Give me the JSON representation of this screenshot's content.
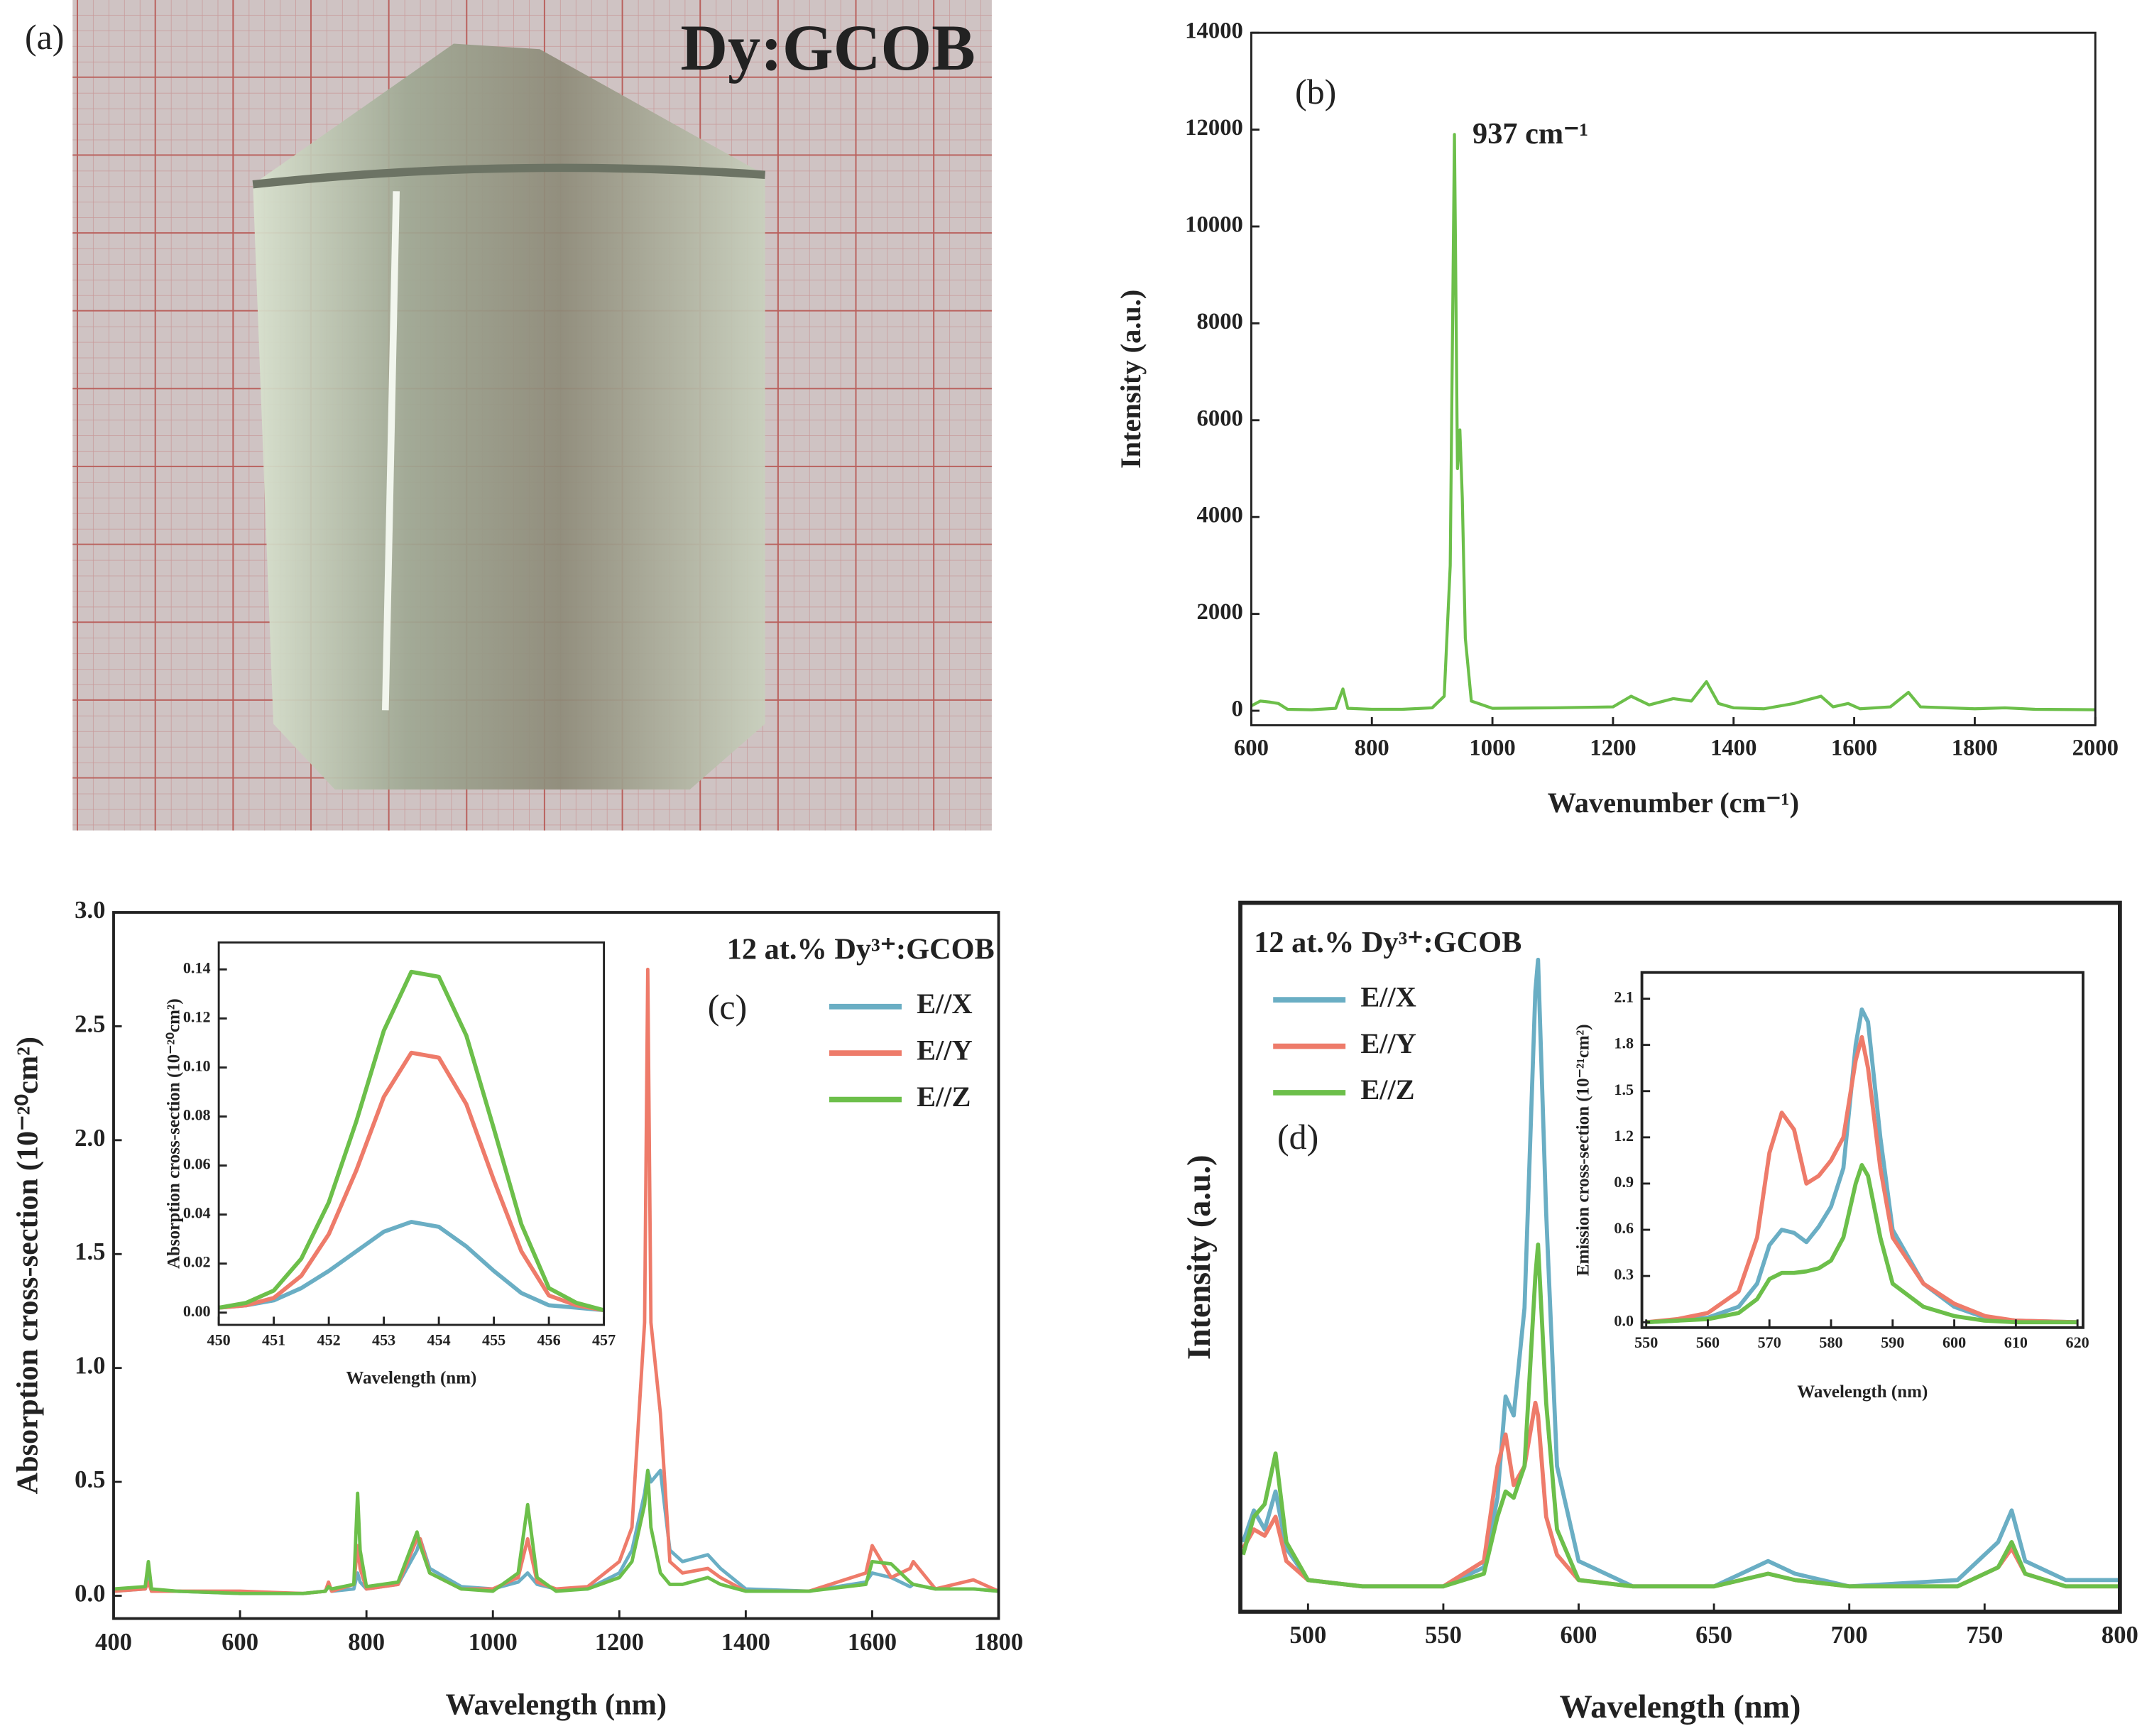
{
  "photo": {
    "label": "(a)",
    "caption": "Dy:GCOB"
  },
  "chart_data": [
    {
      "type": "line",
      "label": "(b)",
      "annotation": "937 cm⁻¹",
      "annotation_color": "#c0272d",
      "xlabel": "Wavenumber (cm⁻¹)",
      "ylabel": "Intensity (a.u.)",
      "x": [
        600,
        615,
        630,
        645,
        660,
        700,
        740,
        752,
        760,
        800,
        850,
        900,
        920,
        930,
        937,
        942,
        946,
        950,
        955,
        965,
        1000,
        1100,
        1200,
        1230,
        1260,
        1300,
        1330,
        1355,
        1375,
        1400,
        1450,
        1500,
        1545,
        1565,
        1590,
        1610,
        1660,
        1690,
        1710,
        1800,
        1850,
        1900,
        2000
      ],
      "values": [
        100,
        200,
        180,
        150,
        30,
        20,
        50,
        450,
        50,
        30,
        30,
        60,
        300,
        3000,
        11900,
        5000,
        5800,
        4400,
        1500,
        200,
        50,
        60,
        80,
        300,
        120,
        250,
        200,
        600,
        150,
        60,
        40,
        150,
        300,
        80,
        150,
        40,
        80,
        380,
        80,
        40,
        60,
        30,
        20
      ],
      "color": "#6cbf4a",
      "xlim": [
        600,
        2000
      ],
      "xticks": [
        600,
        800,
        1000,
        1200,
        1400,
        1600,
        1800,
        2000
      ],
      "ylim": [
        -300,
        14000
      ],
      "yticks": [
        0,
        2000,
        4000,
        6000,
        8000,
        10000,
        12000,
        14000
      ]
    },
    {
      "type": "line",
      "label": "(c)",
      "annotation": "12 at.% Dy³⁺:GCOB",
      "legend": "upper right",
      "xlabel": "Wavelength (nm)",
      "ylabel": "Absorption cross-section (10⁻²⁰cm²)",
      "x": [
        400,
        450,
        455,
        460,
        500,
        600,
        700,
        735,
        740,
        745,
        780,
        786,
        790,
        800,
        850,
        880,
        885,
        900,
        950,
        1000,
        1040,
        1055,
        1070,
        1100,
        1150,
        1200,
        1220,
        1240,
        1245,
        1250,
        1265,
        1280,
        1300,
        1340,
        1360,
        1400,
        1500,
        1590,
        1600,
        1630,
        1660,
        1665,
        1700,
        1760,
        1800
      ],
      "series": [
        {
          "name": "E//X",
          "color": "#6aaec4",
          "values": [
            0.02,
            0.03,
            0.08,
            0.02,
            0.02,
            0.01,
            0.01,
            0.02,
            0.05,
            0.02,
            0.03,
            0.1,
            0.06,
            0.03,
            0.05,
            0.2,
            0.25,
            0.12,
            0.04,
            0.03,
            0.06,
            0.1,
            0.05,
            0.03,
            0.03,
            0.1,
            0.2,
            0.45,
            0.55,
            0.5,
            0.55,
            0.2,
            0.15,
            0.18,
            0.12,
            0.03,
            0.02,
            0.06,
            0.1,
            0.08,
            0.04,
            0.05,
            0.03,
            0.03,
            0.02
          ]
        },
        {
          "name": "E//Y",
          "color": "#ee7b6a",
          "values": [
            0.02,
            0.03,
            0.06,
            0.02,
            0.02,
            0.02,
            0.01,
            0.02,
            0.06,
            0.02,
            0.05,
            0.22,
            0.12,
            0.03,
            0.05,
            0.25,
            0.25,
            0.1,
            0.03,
            0.03,
            0.08,
            0.25,
            0.06,
            0.03,
            0.04,
            0.15,
            0.3,
            1.2,
            2.75,
            1.2,
            0.8,
            0.15,
            0.1,
            0.12,
            0.08,
            0.02,
            0.02,
            0.1,
            0.22,
            0.08,
            0.12,
            0.15,
            0.03,
            0.07,
            0.02
          ]
        },
        {
          "name": "E//Z",
          "color": "#6cbf4a",
          "values": [
            0.03,
            0.04,
            0.15,
            0.03,
            0.02,
            0.01,
            0.01,
            0.02,
            0.04,
            0.03,
            0.05,
            0.45,
            0.2,
            0.04,
            0.06,
            0.28,
            0.22,
            0.1,
            0.03,
            0.02,
            0.1,
            0.4,
            0.08,
            0.02,
            0.03,
            0.08,
            0.15,
            0.4,
            0.55,
            0.3,
            0.1,
            0.05,
            0.05,
            0.08,
            0.05,
            0.02,
            0.02,
            0.05,
            0.15,
            0.14,
            0.06,
            0.05,
            0.03,
            0.03,
            0.02
          ]
        }
      ],
      "xlim": [
        400,
        1800
      ],
      "xticks": [
        400,
        600,
        800,
        1000,
        1200,
        1400,
        1600,
        1800
      ],
      "ylim": [
        -0.1,
        3.0
      ],
      "yticks": [
        {
          "value": 0,
          "label": "0.0"
        },
        0.5,
        {
          "value": 1,
          "label": "1.0"
        },
        1.5,
        {
          "value": 2,
          "label": "2.0"
        },
        2.5,
        {
          "value": 3,
          "label": "3.0"
        }
      ]
    },
    {
      "type": "line",
      "xlabel": "Wavelength (nm)",
      "ylabel": "Absorption cross-section (10⁻²⁰cm²)",
      "x": [
        450,
        450.5,
        451,
        451.5,
        452,
        452.5,
        453,
        453.5,
        454,
        454.5,
        455,
        455.5,
        456,
        456.5,
        457
      ],
      "series": [
        {
          "color": "#6aaec4",
          "values": [
            0.002,
            0.003,
            0.005,
            0.01,
            0.017,
            0.025,
            0.033,
            0.037,
            0.035,
            0.027,
            0.017,
            0.008,
            0.003,
            0.002,
            0.001
          ]
        },
        {
          "color": "#ee7b6a",
          "values": [
            0.002,
            0.003,
            0.006,
            0.015,
            0.032,
            0.058,
            0.088,
            0.106,
            0.104,
            0.085,
            0.054,
            0.025,
            0.007,
            0.003,
            0.001
          ]
        },
        {
          "color": "#6cbf4a",
          "values": [
            0.002,
            0.004,
            0.009,
            0.022,
            0.045,
            0.078,
            0.115,
            0.139,
            0.137,
            0.113,
            0.075,
            0.036,
            0.01,
            0.004,
            0.001
          ]
        }
      ],
      "xlim": [
        450,
        457
      ],
      "xticks": [
        450,
        451,
        452,
        453,
        454,
        455,
        456,
        457
      ],
      "ylim": [
        -0.005,
        0.151
      ],
      "yticks": [
        {
          "value": 0,
          "label": "0.00"
        },
        {
          "value": 0.02,
          "label": "0.02"
        },
        {
          "value": 0.04,
          "label": "0.04"
        },
        {
          "value": 0.06,
          "label": "0.06"
        },
        {
          "value": 0.08,
          "label": "0.08"
        },
        {
          "value": 0.1,
          "label": "0.10"
        },
        {
          "value": 0.12,
          "label": "0.12"
        },
        {
          "value": 0.14,
          "label": "0.14"
        }
      ]
    },
    {
      "type": "line",
      "label": "(d)",
      "annotation": "12 at.% Dy³⁺:GCOB",
      "legend": "upper left",
      "xlabel": "Wavelength (nm)",
      "ylabel": "Intensity (a.u.)",
      "x": [
        476,
        480,
        484,
        488,
        492,
        500,
        520,
        550,
        565,
        570,
        573,
        576,
        580,
        584,
        585,
        588,
        592,
        600,
        620,
        650,
        660,
        670,
        680,
        700,
        740,
        755,
        760,
        765,
        780,
        800
      ],
      "series": [
        {
          "name": "E//X",
          "color": "#6aaec4",
          "values": [
            0.08,
            0.13,
            0.1,
            0.16,
            0.07,
            0.02,
            0.01,
            0.01,
            0.04,
            0.15,
            0.31,
            0.28,
            0.45,
            0.95,
            1.0,
            0.6,
            0.2,
            0.05,
            0.01,
            0.01,
            0.03,
            0.05,
            0.03,
            0.01,
            0.02,
            0.08,
            0.13,
            0.05,
            0.02,
            0.02
          ]
        },
        {
          "name": "E//Y",
          "color": "#ee7b6a",
          "values": [
            0.07,
            0.1,
            0.09,
            0.12,
            0.05,
            0.02,
            0.01,
            0.01,
            0.05,
            0.2,
            0.25,
            0.17,
            0.2,
            0.3,
            0.28,
            0.12,
            0.06,
            0.02,
            0.01,
            0.01,
            0.02,
            0.03,
            0.02,
            0.01,
            0.01,
            0.04,
            0.07,
            0.03,
            0.01,
            0.01
          ]
        },
        {
          "name": "E//Z",
          "color": "#6cbf4a",
          "values": [
            0.06,
            0.12,
            0.14,
            0.22,
            0.08,
            0.02,
            0.01,
            0.01,
            0.03,
            0.12,
            0.16,
            0.15,
            0.2,
            0.5,
            0.55,
            0.3,
            0.1,
            0.02,
            0.01,
            0.01,
            0.02,
            0.03,
            0.02,
            0.01,
            0.01,
            0.04,
            0.08,
            0.03,
            0.01,
            0.01
          ]
        }
      ],
      "xlim": [
        475,
        800
      ],
      "xticks": [
        500,
        550,
        600,
        650,
        700,
        750,
        800
      ],
      "ylim": [
        -0.03,
        1.09
      ],
      "yticks": []
    },
    {
      "type": "line",
      "xlabel": "Wavelength (nm)",
      "ylabel": "Emission cross-section (10⁻²¹cm²)",
      "x": [
        550,
        555,
        560,
        565,
        568,
        570,
        572,
        574,
        576,
        578,
        580,
        582,
        584,
        585,
        586,
        588,
        590,
        595,
        600,
        605,
        610,
        620
      ],
      "series": [
        {
          "color": "#6aaec4",
          "values": [
            0.0,
            0.01,
            0.03,
            0.1,
            0.25,
            0.5,
            0.6,
            0.58,
            0.52,
            0.62,
            0.75,
            1.0,
            1.8,
            2.03,
            1.95,
            1.2,
            0.6,
            0.25,
            0.1,
            0.03,
            0.01,
            0.0
          ]
        },
        {
          "color": "#ee7b6a",
          "values": [
            0.0,
            0.02,
            0.06,
            0.2,
            0.55,
            1.1,
            1.36,
            1.25,
            0.9,
            0.95,
            1.05,
            1.2,
            1.7,
            1.85,
            1.65,
            1.0,
            0.55,
            0.25,
            0.12,
            0.04,
            0.01,
            0.0
          ]
        },
        {
          "color": "#6cbf4a",
          "values": [
            0.0,
            0.01,
            0.02,
            0.06,
            0.15,
            0.28,
            0.32,
            0.32,
            0.33,
            0.35,
            0.4,
            0.55,
            0.9,
            1.02,
            0.95,
            0.55,
            0.25,
            0.1,
            0.04,
            0.01,
            0.0,
            0.0
          ]
        }
      ],
      "xlim": [
        549.3,
        620.9
      ],
      "xticks": [
        550,
        560,
        570,
        580,
        590,
        600,
        610,
        620
      ],
      "ylim": [
        -0.035,
        2.27
      ],
      "yticks": [
        {
          "value": 0,
          "label": "0.0"
        },
        0.3,
        0.6,
        0.9,
        1.2,
        1.5,
        1.8,
        2.1
      ]
    }
  ]
}
